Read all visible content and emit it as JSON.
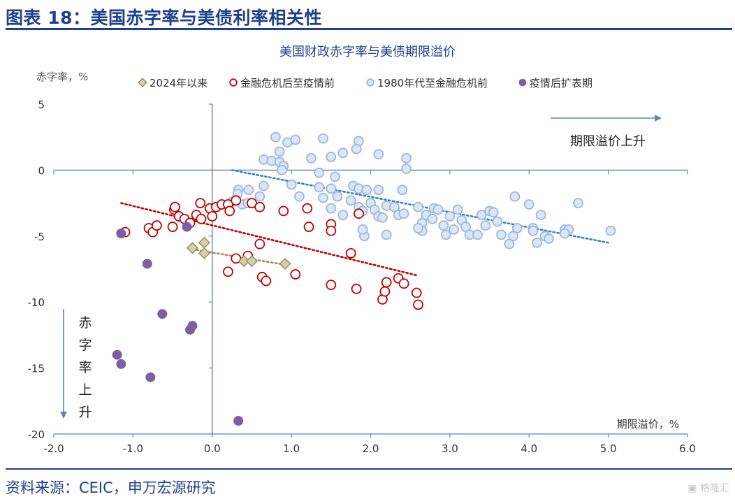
{
  "header": {
    "title": "图表 18：美国赤字率与美债利率相关性"
  },
  "footer": {
    "source": "资料来源：CEIC，申万宏源研究",
    "watermark": "格隆汇"
  },
  "colors": {
    "brand": "#1f3f8f",
    "axis": "#5b83bd"
  },
  "chart_data": {
    "type": "scatter",
    "title": "美国财政赤字率与美债期限溢价",
    "xlabel": "期限溢价，%",
    "ylabel": "赤字率，%",
    "xlim": [
      -2.0,
      6.0
    ],
    "ylim": [
      -20,
      5
    ],
    "x_ticks": [
      "-2.0",
      "-1.0",
      "0.0",
      "1.0",
      "2.0",
      "3.0",
      "4.0",
      "5.0",
      "6.0"
    ],
    "y_ticks": [
      "5",
      "0",
      "-5",
      "-10",
      "-15",
      "-20"
    ],
    "legend_position": "top",
    "annotations": {
      "right_arrow_text": "期限溢价上升",
      "down_arrow_text": "赤字率上升"
    },
    "series": [
      {
        "name": "2024年以来",
        "marker": "diamond",
        "fill": "#d8cfaa",
        "stroke": "#9a8f62",
        "trend_color": "#9a8f62",
        "trend": [
          [
            -0.25,
            -6.0
          ],
          [
            0.95,
            -7.2
          ]
        ],
        "points": [
          [
            -0.25,
            -5.9
          ],
          [
            -0.1,
            -5.5
          ],
          [
            -0.1,
            -6.3
          ],
          [
            0.4,
            -6.9
          ],
          [
            0.5,
            -6.9
          ],
          [
            0.92,
            -7.1
          ]
        ]
      },
      {
        "name": "金融危机后至疫情前",
        "marker": "circle",
        "fill": "#ffffff",
        "stroke": "#c00000",
        "trend_color": "#c00000",
        "trend": [
          [
            -1.15,
            -2.5
          ],
          [
            2.6,
            -8.0
          ]
        ],
        "points": [
          [
            -1.1,
            -4.7
          ],
          [
            -0.8,
            -4.4
          ],
          [
            -0.75,
            -4.7
          ],
          [
            -0.7,
            -4.2
          ],
          [
            -0.5,
            -4.3
          ],
          [
            -0.48,
            -3.0
          ],
          [
            -0.47,
            -2.8
          ],
          [
            -0.42,
            -3.5
          ],
          [
            -0.35,
            -3.7
          ],
          [
            -0.28,
            -4.0
          ],
          [
            -0.2,
            -3.4
          ],
          [
            -0.15,
            -2.5
          ],
          [
            -0.14,
            -3.7
          ],
          [
            -0.03,
            -2.9
          ],
          [
            0.0,
            -3.5
          ],
          [
            0.05,
            -2.8
          ],
          [
            0.12,
            -2.6
          ],
          [
            0.2,
            -2.6
          ],
          [
            0.22,
            -3.1
          ],
          [
            0.3,
            -2.3
          ],
          [
            0.5,
            -2.5
          ],
          [
            0.6,
            -2.8
          ],
          [
            0.2,
            -7.7
          ],
          [
            0.3,
            -6.7
          ],
          [
            0.45,
            -6.5
          ],
          [
            0.6,
            -5.6
          ],
          [
            0.63,
            -8.1
          ],
          [
            0.68,
            -8.4
          ],
          [
            0.9,
            -3.1
          ],
          [
            1.05,
            -7.9
          ],
          [
            1.2,
            -2.9
          ],
          [
            1.22,
            -4.3
          ],
          [
            1.5,
            -4.1
          ],
          [
            1.5,
            -4.6
          ],
          [
            1.5,
            -8.7
          ],
          [
            1.75,
            -6.3
          ],
          [
            1.85,
            -3.3
          ],
          [
            1.82,
            -9.0
          ],
          [
            2.15,
            -9.8
          ],
          [
            2.18,
            -9.2
          ],
          [
            2.2,
            -8.5
          ],
          [
            2.35,
            -8.2
          ],
          [
            2.42,
            -8.6
          ],
          [
            2.58,
            -9.3
          ],
          [
            2.6,
            -10.2
          ]
        ]
      },
      {
        "name": "1980年代至金融危机前",
        "marker": "circle",
        "fill": "#dbe6f5",
        "stroke": "#9bb7dc",
        "trend_color": "#2e86c1",
        "trend": [
          [
            0.25,
            0.0
          ],
          [
            5.0,
            -5.5
          ]
        ],
        "points": [
          [
            0.8,
            2.5
          ],
          [
            0.95,
            2.1
          ],
          [
            1.05,
            2.3
          ],
          [
            1.4,
            2.4
          ],
          [
            1.85,
            2.2
          ],
          [
            1.82,
            1.6
          ],
          [
            1.65,
            1.3
          ],
          [
            1.5,
            1.0
          ],
          [
            1.25,
            0.9
          ],
          [
            0.85,
            1.4
          ],
          [
            0.65,
            0.8
          ],
          [
            0.75,
            0.7
          ],
          [
            0.85,
            0.6
          ],
          [
            0.9,
            0.3
          ],
          [
            0.88,
            0.0
          ],
          [
            2.1,
            1.2
          ],
          [
            2.45,
            0.9
          ],
          [
            2.45,
            0.1
          ],
          [
            1.35,
            -0.2
          ],
          [
            1.55,
            -0.5
          ],
          [
            1.0,
            -1.1
          ],
          [
            0.65,
            -1.2
          ],
          [
            1.1,
            -2.0
          ],
          [
            1.35,
            -1.3
          ],
          [
            1.5,
            -1.4
          ],
          [
            1.78,
            -1.2
          ],
          [
            1.85,
            -1.4
          ],
          [
            1.95,
            -1.5
          ],
          [
            2.1,
            -1.5
          ],
          [
            2.4,
            -1.5
          ],
          [
            0.33,
            -1.5
          ],
          [
            0.32,
            -1.8
          ],
          [
            0.46,
            -1.5
          ],
          [
            0.6,
            -2.0
          ],
          [
            0.25,
            -2.4
          ],
          [
            0.38,
            -2.6
          ],
          [
            0.45,
            -2.5
          ],
          [
            1.58,
            -2.0
          ],
          [
            1.65,
            -3.4
          ],
          [
            1.75,
            -2.3
          ],
          [
            1.85,
            -2.8
          ],
          [
            1.9,
            -3.1
          ],
          [
            2.0,
            -2.5
          ],
          [
            2.05,
            -3.0
          ],
          [
            2.1,
            -3.5
          ],
          [
            2.2,
            -2.7
          ],
          [
            2.3,
            -2.8
          ],
          [
            2.35,
            -3.4
          ],
          [
            2.42,
            -3.3
          ],
          [
            1.4,
            -2.1
          ],
          [
            1.5,
            -2.9
          ],
          [
            1.92,
            -5.0
          ],
          [
            2.2,
            -4.9
          ],
          [
            2.15,
            -3.6
          ],
          [
            2.6,
            -2.8
          ],
          [
            2.65,
            -4.0
          ],
          [
            2.65,
            -4.6
          ],
          [
            2.7,
            -3.4
          ],
          [
            2.78,
            -3.7
          ],
          [
            2.8,
            -2.9
          ],
          [
            2.85,
            -3.0
          ],
          [
            2.92,
            -4.2
          ],
          [
            3.0,
            -3.5
          ],
          [
            3.05,
            -4.5
          ],
          [
            3.1,
            -3.0
          ],
          [
            2.95,
            -4.9
          ],
          [
            3.15,
            -3.8
          ],
          [
            3.2,
            -4.3
          ],
          [
            3.25,
            -4.9
          ],
          [
            3.35,
            -4.9
          ],
          [
            3.4,
            -3.4
          ],
          [
            3.45,
            -4.2
          ],
          [
            3.5,
            -3.1
          ],
          [
            3.55,
            -3.2
          ],
          [
            3.6,
            -3.9
          ],
          [
            3.65,
            -4.9
          ],
          [
            3.75,
            -5.6
          ],
          [
            3.8,
            -5.0
          ],
          [
            3.85,
            -4.4
          ],
          [
            3.82,
            -2.0
          ],
          [
            4.0,
            -2.6
          ],
          [
            4.05,
            -4.4
          ],
          [
            4.05,
            -4.6
          ],
          [
            4.1,
            -5.5
          ],
          [
            4.15,
            -3.4
          ],
          [
            4.2,
            -5.0
          ],
          [
            4.25,
            -5.2
          ],
          [
            4.45,
            -4.5
          ],
          [
            4.5,
            -4.5
          ],
          [
            4.45,
            -4.8
          ],
          [
            4.62,
            -2.5
          ],
          [
            5.03,
            -4.6
          ],
          [
            1.9,
            -4.5
          ],
          [
            2.6,
            -4.4
          ]
        ]
      },
      {
        "name": "疫情后扩表期",
        "marker": "circle",
        "fill": "#7f5fa3",
        "stroke": "#7f5fa3",
        "points": [
          [
            -1.15,
            -4.8
          ],
          [
            -0.32,
            -4.3
          ],
          [
            -0.82,
            -7.1
          ],
          [
            -0.63,
            -10.9
          ],
          [
            -1.2,
            -14.0
          ],
          [
            -1.15,
            -14.7
          ],
          [
            -0.78,
            -15.7
          ],
          [
            -0.28,
            -12.1
          ],
          [
            -0.25,
            -11.8
          ],
          [
            0.33,
            -19.0
          ]
        ]
      }
    ]
  }
}
